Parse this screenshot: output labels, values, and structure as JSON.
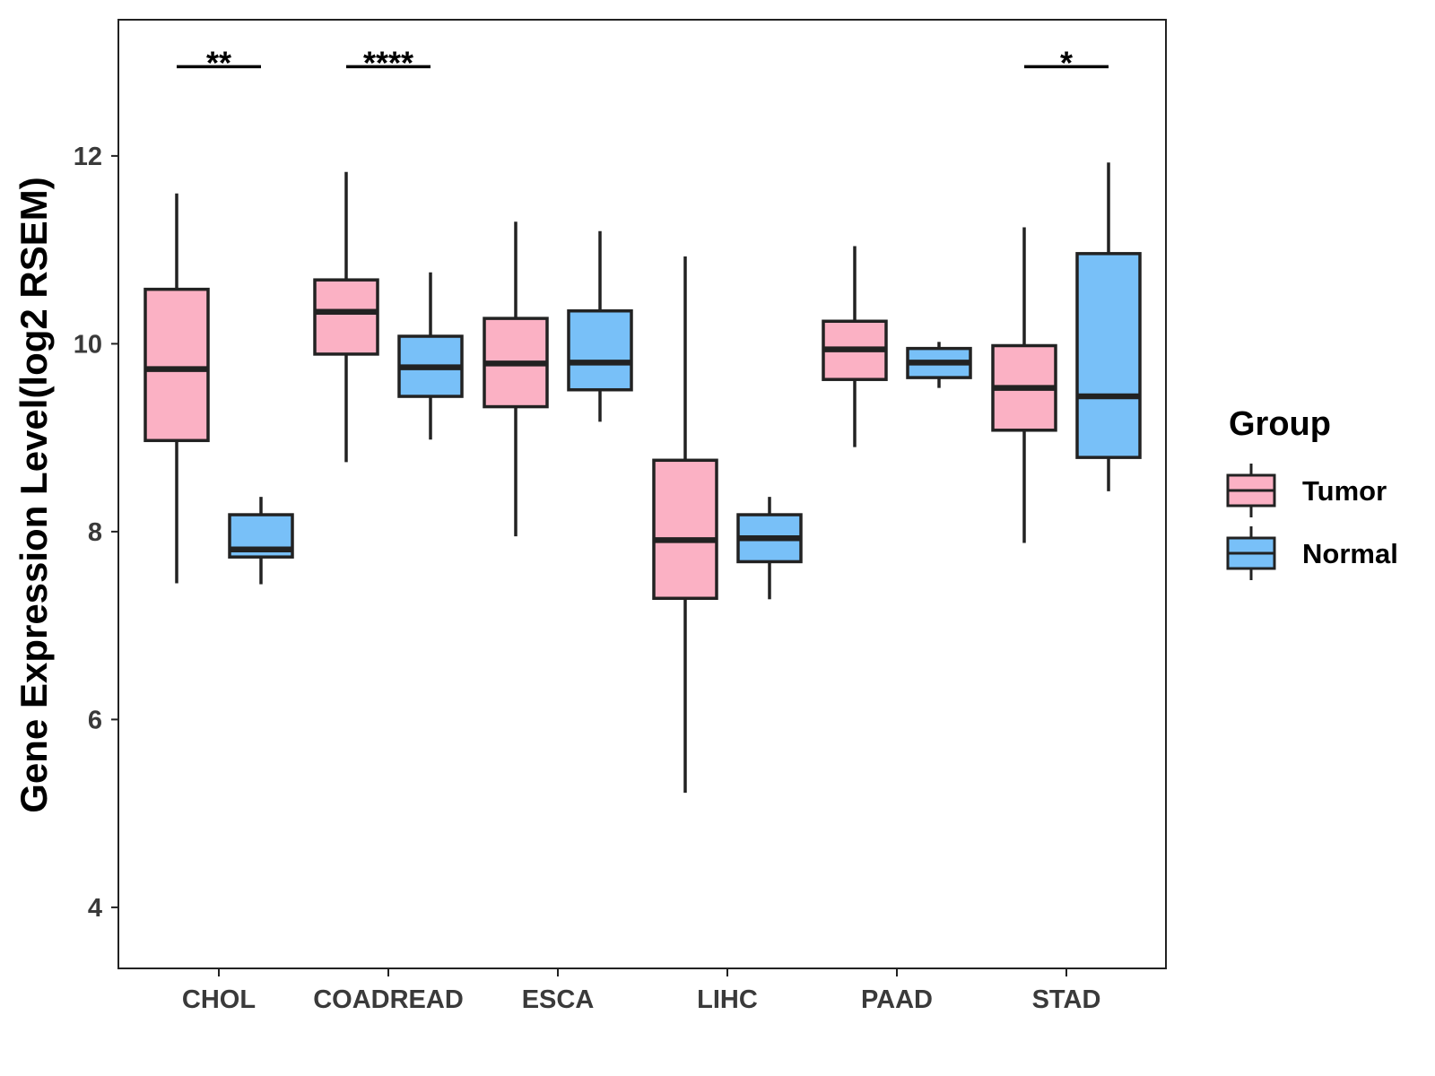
{
  "chart_data": {
    "type": "boxplot",
    "title": "",
    "xlabel": "",
    "ylabel": "Gene Expression Level(log2 RSEM)",
    "ylim": [
      3.35,
      13.45
    ],
    "y_ticks": [
      4,
      6,
      8,
      10,
      12
    ],
    "grid": false,
    "legend": {
      "title": "Group",
      "placement": "right",
      "entries": [
        "Tumor",
        "Normal"
      ]
    },
    "colors": {
      "Tumor": "#FBB1C4",
      "Normal": "#78C0F8",
      "outline": "#222222",
      "frame": "#222222"
    },
    "categories": [
      "CHOL",
      "COADREAD",
      "ESCA",
      "LIHC",
      "PAAD",
      "STAD"
    ],
    "series": [
      {
        "name": "Tumor",
        "boxes": [
          {
            "min": 7.45,
            "q1": 8.97,
            "median": 9.73,
            "q3": 10.58,
            "max": 11.6
          },
          {
            "min": 8.74,
            "q1": 9.89,
            "median": 10.34,
            "q3": 10.68,
            "max": 11.83
          },
          {
            "min": 7.95,
            "q1": 9.33,
            "median": 9.79,
            "q3": 10.27,
            "max": 11.3
          },
          {
            "min": 5.22,
            "q1": 7.29,
            "median": 7.91,
            "q3": 8.76,
            "max": 10.93
          },
          {
            "min": 8.9,
            "q1": 9.62,
            "median": 9.94,
            "q3": 10.24,
            "max": 11.04
          },
          {
            "min": 7.88,
            "q1": 9.08,
            "median": 9.53,
            "q3": 9.98,
            "max": 11.24
          }
        ]
      },
      {
        "name": "Normal",
        "boxes": [
          {
            "min": 7.44,
            "q1": 7.73,
            "median": 7.81,
            "q3": 8.18,
            "max": 8.37
          },
          {
            "min": 8.98,
            "q1": 9.44,
            "median": 9.75,
            "q3": 10.08,
            "max": 10.76
          },
          {
            "min": 9.17,
            "q1": 9.51,
            "median": 9.8,
            "q3": 10.35,
            "max": 11.2
          },
          {
            "min": 7.28,
            "q1": 7.68,
            "median": 7.93,
            "q3": 8.18,
            "max": 8.37
          },
          {
            "min": 9.53,
            "q1": 9.64,
            "median": 9.8,
            "q3": 9.95,
            "max": 10.02
          },
          {
            "min": 8.43,
            "q1": 8.79,
            "median": 9.44,
            "q3": 10.96,
            "max": 11.93
          }
        ]
      }
    ],
    "significance": [
      {
        "category": "CHOL",
        "label": "**"
      },
      {
        "category": "COADREAD",
        "label": "****"
      },
      {
        "category": "STAD",
        "label": "*"
      }
    ],
    "significance_level": 12.95
  }
}
